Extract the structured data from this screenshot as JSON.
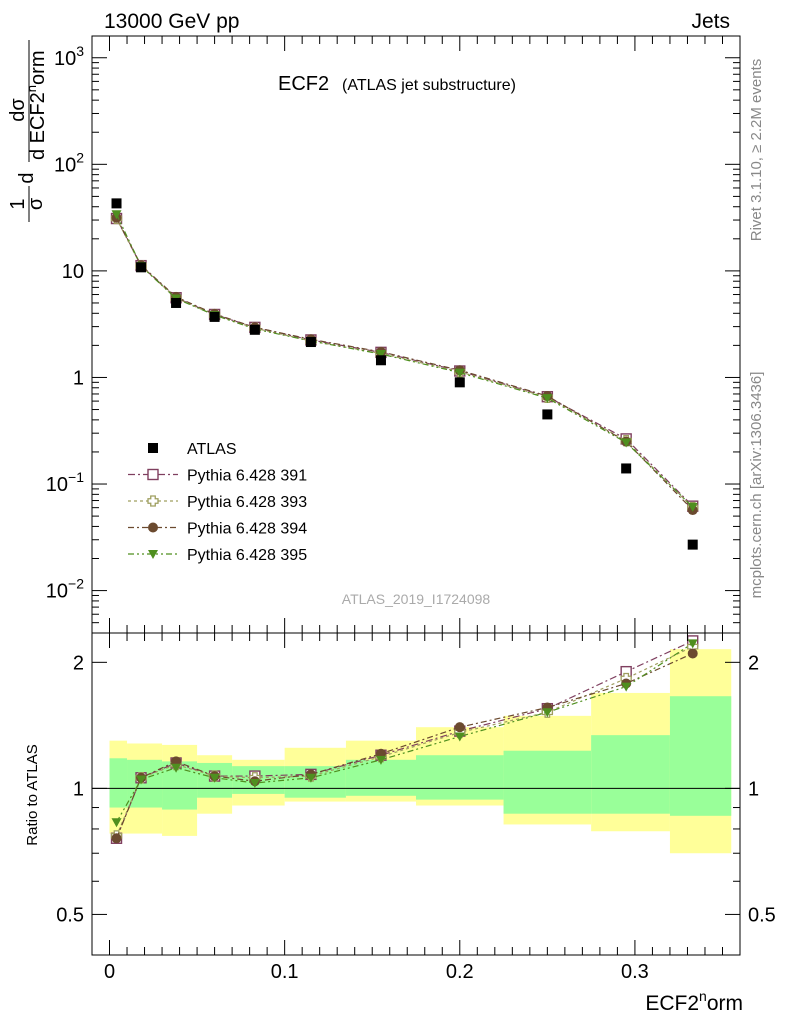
{
  "header": {
    "left": "13000 GeV pp",
    "right": "Jets"
  },
  "title": {
    "main": "ECF2",
    "sub": "(ATLAS jet substructure)"
  },
  "side_labels": {
    "rivet": "Rivet 3.1.10, ≥ 2.2M events",
    "mcplots": "mcplots.cern.ch [arXiv:1306.3436]"
  },
  "watermark": "ATLAS_2019_I1724098",
  "axes": {
    "xlabel_base": "ECF2",
    "xlabel_sup": "n",
    "xlabel_tail": "orm",
    "ylabel_ratio": "Ratio to ATLAS",
    "ylabel_main": {
      "frac_num": "1",
      "frac_den": "σ",
      "d": "d",
      "dd_num": "dσ",
      "dd_den_base": "d ECF2",
      "dd_den_sup": "n",
      "dd_den_tail": "orm"
    }
  },
  "chart_data": {
    "type": "scatter",
    "x_range": [
      -0.01,
      0.36
    ],
    "main_y_range": [
      0.004,
      1600
    ],
    "main_y_scale": "log",
    "ratio_y_range": [
      0.4,
      2.35
    ],
    "ratio_y_scale": "log",
    "x_ticks": [
      {
        "value": 0,
        "label": "0"
      },
      {
        "value": 0.1,
        "label": "0.1"
      },
      {
        "value": 0.2,
        "label": "0.2"
      },
      {
        "value": 0.3,
        "label": "0.3"
      }
    ],
    "main_y_ticks": [
      {
        "value": 0.01,
        "base": "10",
        "exp": "−2"
      },
      {
        "value": 0.1,
        "base": "10",
        "exp": "−1"
      },
      {
        "value": 1,
        "base": "1",
        "exp": ""
      },
      {
        "value": 10,
        "base": "10",
        "exp": ""
      },
      {
        "value": 100,
        "base": "10",
        "exp": "2"
      },
      {
        "value": 1000,
        "base": "10",
        "exp": "3"
      }
    ],
    "ratio_y_ticks": [
      {
        "value": 0.5,
        "label": "0.5"
      },
      {
        "value": 1,
        "label": "1"
      },
      {
        "value": 2,
        "label": "2"
      }
    ],
    "legend_position": "bottom-left",
    "bins": [
      {
        "lo": 0.0,
        "hi": 0.01,
        "x": 0.004
      },
      {
        "lo": 0.01,
        "hi": 0.03,
        "x": 0.018
      },
      {
        "lo": 0.03,
        "hi": 0.05,
        "x": 0.038
      },
      {
        "lo": 0.05,
        "hi": 0.07,
        "x": 0.06
      },
      {
        "lo": 0.07,
        "hi": 0.1,
        "x": 0.083
      },
      {
        "lo": 0.1,
        "hi": 0.135,
        "x": 0.115
      },
      {
        "lo": 0.135,
        "hi": 0.175,
        "x": 0.155
      },
      {
        "lo": 0.175,
        "hi": 0.225,
        "x": 0.2
      },
      {
        "lo": 0.225,
        "hi": 0.275,
        "x": 0.25
      },
      {
        "lo": 0.275,
        "hi": 0.32,
        "x": 0.295
      },
      {
        "lo": 0.32,
        "hi": 0.355,
        "x": 0.333
      }
    ],
    "data": {
      "name": "ATLAS",
      "color": "#000000",
      "values": [
        43,
        10.8,
        5.0,
        3.7,
        2.8,
        2.15,
        1.45,
        0.9,
        0.45,
        0.14,
        0.027
      ]
    },
    "bands": {
      "inner_color": "#99ff99",
      "outer_color": "#ffff99",
      "inner": [
        [
          0.9,
          1.18
        ],
        [
          0.9,
          1.17
        ],
        [
          0.89,
          1.16
        ],
        [
          0.95,
          1.15
        ],
        [
          0.97,
          1.13
        ],
        [
          0.95,
          1.13
        ],
        [
          0.96,
          1.17
        ],
        [
          0.94,
          1.2
        ],
        [
          0.87,
          1.23
        ],
        [
          0.87,
          1.34
        ],
        [
          0.86,
          1.66
        ]
      ],
      "outer": [
        [
          0.78,
          1.3
        ],
        [
          0.78,
          1.28
        ],
        [
          0.77,
          1.27
        ],
        [
          0.87,
          1.2
        ],
        [
          0.91,
          1.17
        ],
        [
          0.93,
          1.25
        ],
        [
          0.93,
          1.3
        ],
        [
          0.91,
          1.4
        ],
        [
          0.82,
          1.49
        ],
        [
          0.79,
          1.69
        ],
        [
          0.7,
          2.15
        ]
      ]
    },
    "series": [
      {
        "name": "Pythia 6.428 391",
        "color": "#7f3f5f",
        "marker": "open-square",
        "dash": "7,3,2,3",
        "values": [
          31,
          11.2,
          5.6,
          3.9,
          2.95,
          2.25,
          1.72,
          1.15,
          0.66,
          0.265,
          0.062
        ],
        "ratio": [
          0.76,
          1.06,
          1.15,
          1.07,
          1.07,
          1.08,
          1.2,
          1.37,
          1.55,
          1.9,
          2.25
        ]
      },
      {
        "name": "Pythia 6.428 393",
        "color": "#9f9f5f",
        "marker": "open-cross",
        "dash": "3,3",
        "values": [
          31,
          11.1,
          5.55,
          3.85,
          2.9,
          2.2,
          1.68,
          1.13,
          0.65,
          0.255,
          0.06
        ],
        "ratio": [
          0.77,
          1.06,
          1.14,
          1.07,
          1.06,
          1.07,
          1.19,
          1.36,
          1.52,
          1.83,
          2.18
        ]
      },
      {
        "name": "Pythia 6.428 394",
        "color": "#6b4a2f",
        "marker": "filled-circle",
        "dash": "6,3,2,3",
        "values": [
          31.5,
          11.3,
          5.7,
          3.95,
          2.95,
          2.28,
          1.74,
          1.17,
          0.67,
          0.25,
          0.057
        ],
        "ratio": [
          0.76,
          1.06,
          1.16,
          1.07,
          1.04,
          1.08,
          1.21,
          1.4,
          1.56,
          1.78,
          2.1
        ]
      },
      {
        "name": "Pythia 6.428 395",
        "color": "#4f8f1f",
        "marker": "filled-triangle-down",
        "dash": "6,3,2,3,2,3",
        "values": [
          34,
          11.1,
          5.5,
          3.85,
          2.85,
          2.2,
          1.66,
          1.11,
          0.64,
          0.245,
          0.061
        ],
        "ratio": [
          0.83,
          1.05,
          1.12,
          1.06,
          1.03,
          1.06,
          1.17,
          1.33,
          1.52,
          1.75,
          2.22
        ]
      }
    ]
  }
}
